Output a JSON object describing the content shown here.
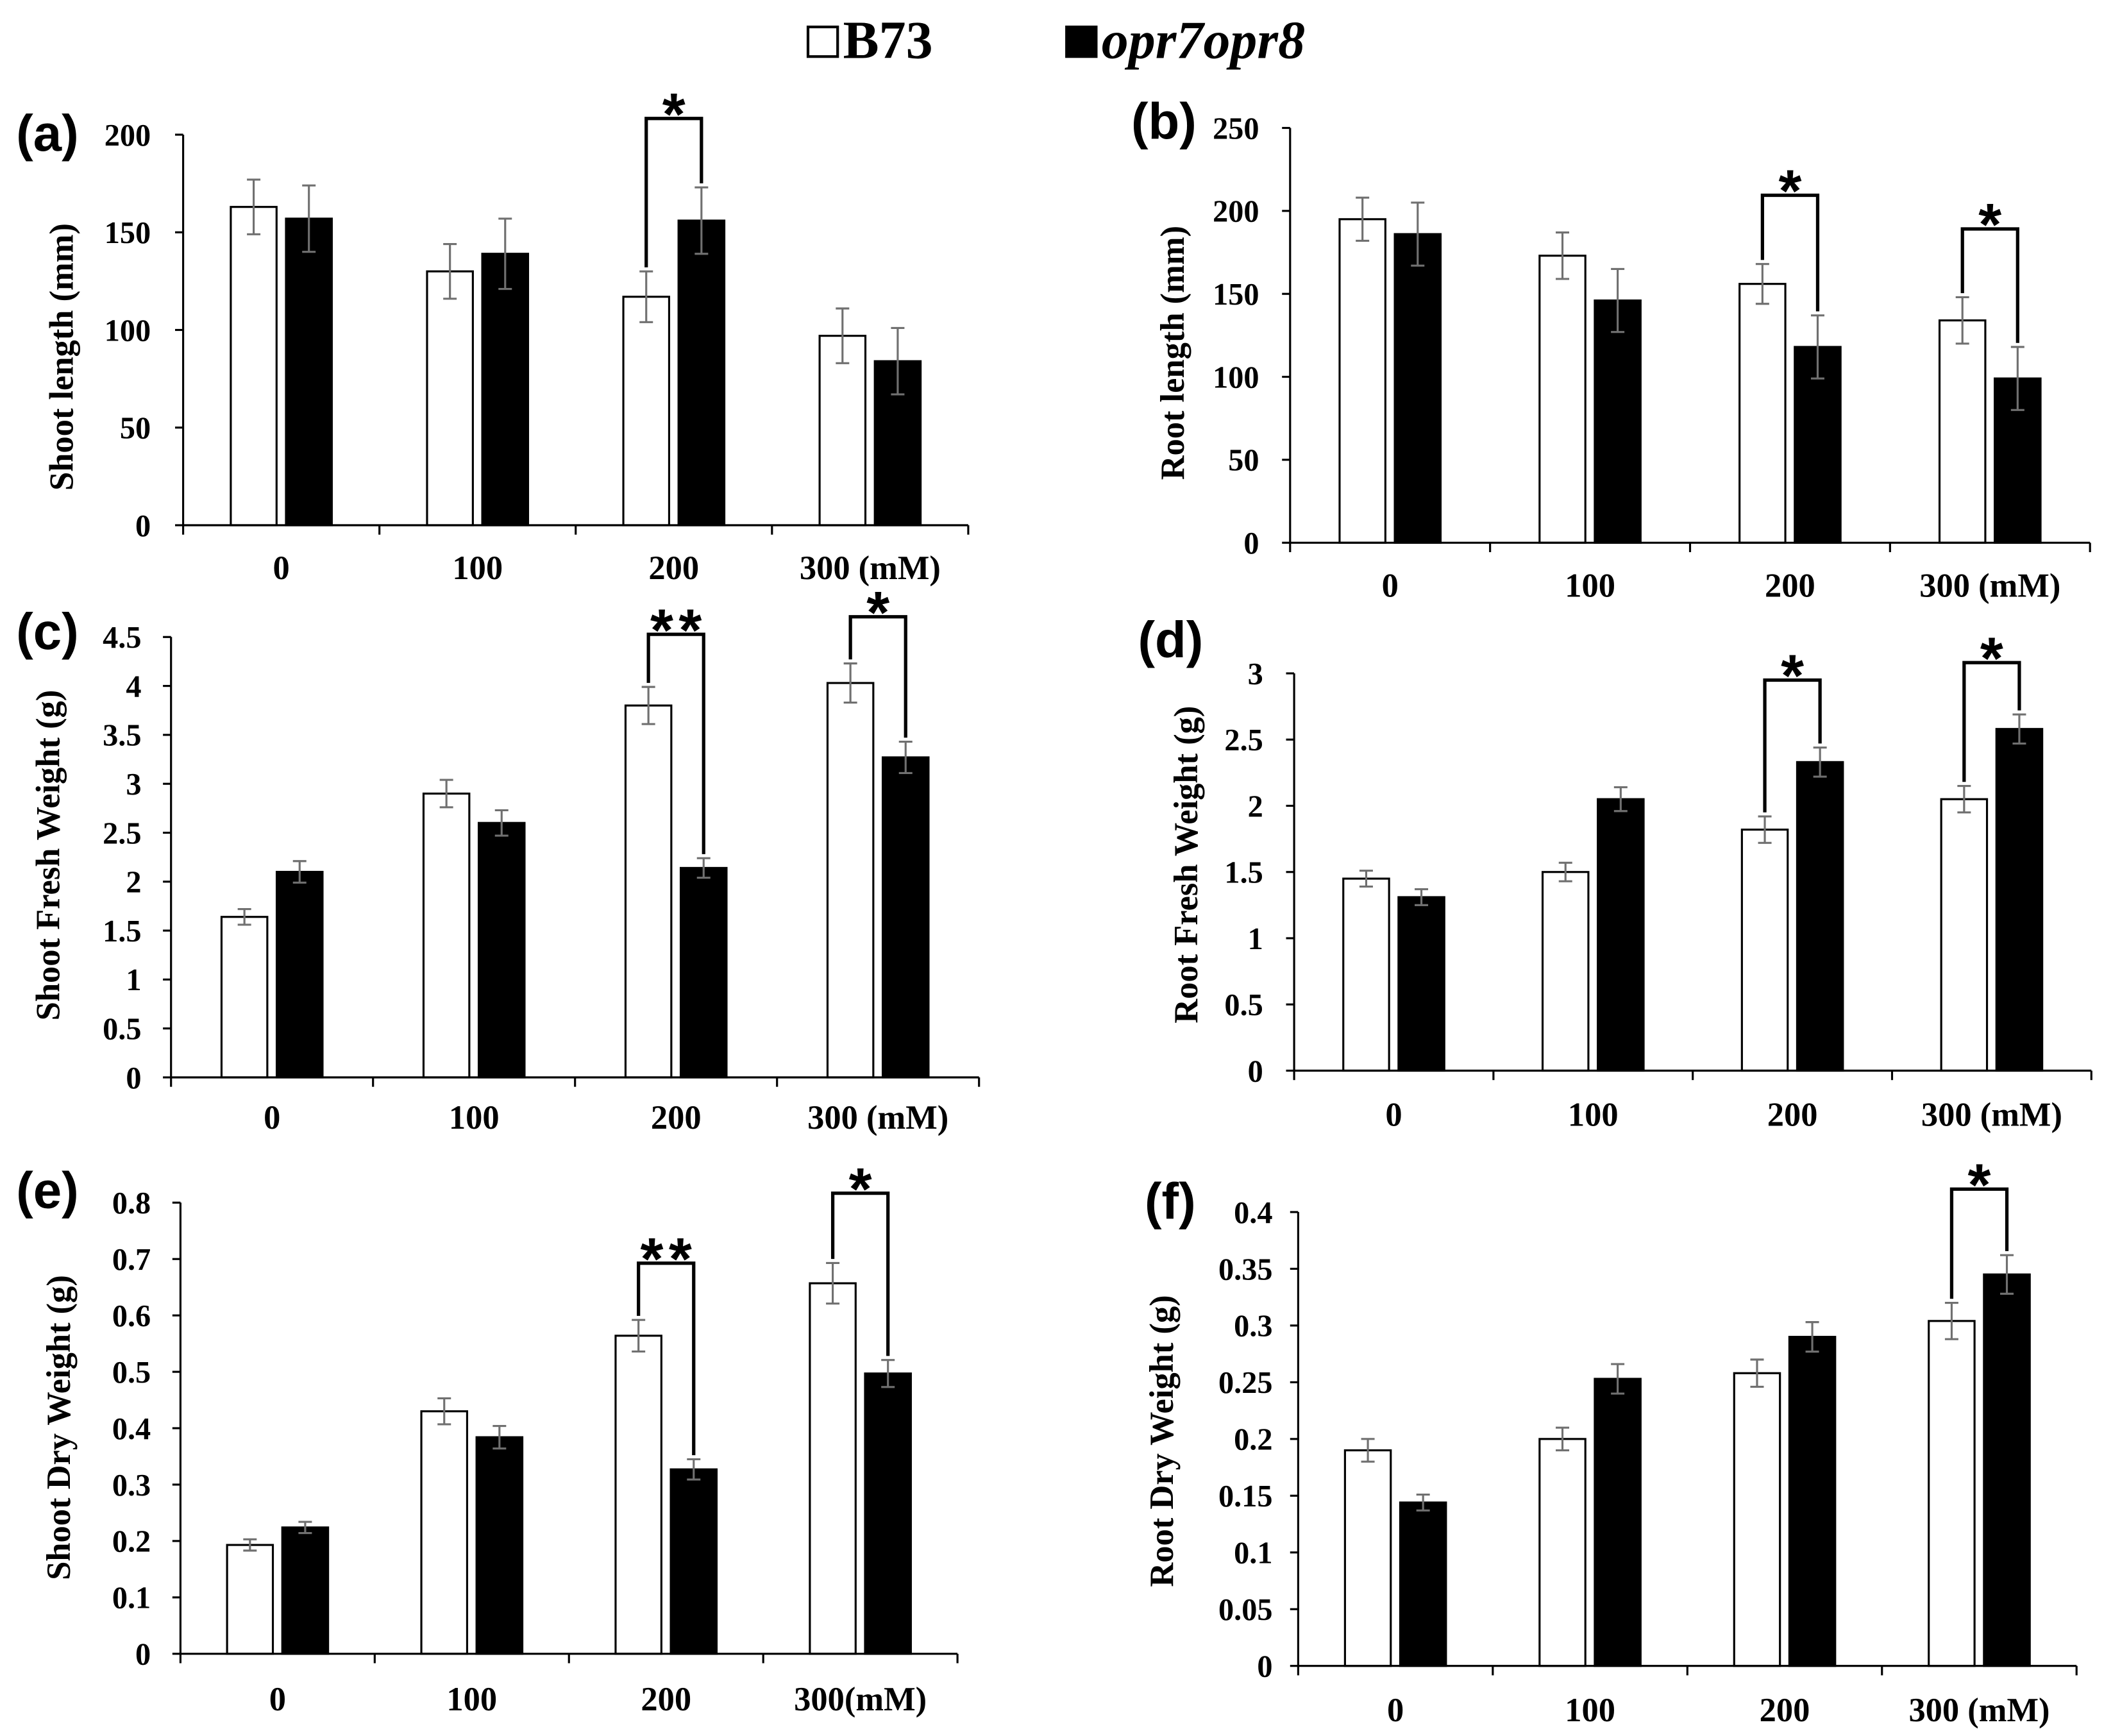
{
  "legend": {
    "items": [
      {
        "label": "B73",
        "swatch": "#ffffff"
      },
      {
        "label": "opr7opr8",
        "swatch": "#000000"
      }
    ]
  },
  "colors": {
    "axis": "#000000",
    "bar_edge": "#000000",
    "error_bar": "#707070",
    "bracket": "#000000"
  },
  "chart_data": [
    {
      "panel": "(a)",
      "type": "bar",
      "ylabel": "Shoot length (mm)",
      "categories": [
        "0",
        "100",
        "200",
        "300 (mM)"
      ],
      "ylim": [
        0,
        200
      ],
      "yticks": [
        0,
        50,
        100,
        150,
        200
      ],
      "series": [
        {
          "values": [
            163,
            130,
            117,
            97
          ],
          "errors": [
            14,
            14,
            13,
            14
          ]
        },
        {
          "values": [
            157,
            139,
            156,
            84
          ],
          "errors": [
            17,
            18,
            17,
            17
          ]
        }
      ],
      "significance": [
        {
          "category_index": 2,
          "label": "*"
        }
      ]
    },
    {
      "panel": "(b)",
      "type": "bar",
      "ylabel": "Root length (mm)",
      "categories": [
        "0",
        "100",
        "200",
        "300 (mM)"
      ],
      "ylim": [
        0,
        250
      ],
      "yticks": [
        0,
        50,
        100,
        150,
        200,
        250
      ],
      "series": [
        {
          "values": [
            195,
            173,
            156,
            134
          ],
          "errors": [
            13,
            14,
            12,
            14
          ]
        },
        {
          "values": [
            186,
            146,
            118,
            99
          ],
          "errors": [
            19,
            19,
            19,
            19
          ]
        }
      ],
      "significance": [
        {
          "category_index": 2,
          "label": "*"
        },
        {
          "category_index": 3,
          "label": "*"
        }
      ]
    },
    {
      "panel": "(c)",
      "type": "bar",
      "ylabel": "Shoot Fresh Weight (g)",
      "categories": [
        "0",
        "100",
        "200",
        "300 (mM)"
      ],
      "ylim": [
        0,
        4.5
      ],
      "yticks": [
        0,
        0.5,
        1,
        1.5,
        2,
        2.5,
        3,
        3.5,
        4,
        4.5
      ],
      "series": [
        {
          "values": [
            1.64,
            2.9,
            3.8,
            4.03
          ],
          "errors": [
            0.08,
            0.14,
            0.19,
            0.2
          ]
        },
        {
          "values": [
            2.1,
            2.6,
            2.14,
            3.27
          ],
          "errors": [
            0.11,
            0.13,
            0.1,
            0.16
          ]
        }
      ],
      "significance": [
        {
          "category_index": 2,
          "label": "**"
        },
        {
          "category_index": 3,
          "label": "*"
        }
      ]
    },
    {
      "panel": "(d)",
      "type": "bar",
      "ylabel": "Root Fresh Weight (g)",
      "categories": [
        "0",
        "100",
        "200",
        "300 (mM)"
      ],
      "ylim": [
        0,
        3
      ],
      "yticks": [
        0,
        0.5,
        1,
        1.5,
        2,
        2.5,
        3
      ],
      "series": [
        {
          "values": [
            1.45,
            1.5,
            1.82,
            2.05
          ],
          "errors": [
            0.06,
            0.07,
            0.1,
            0.1
          ]
        },
        {
          "values": [
            1.31,
            2.05,
            2.33,
            2.58
          ],
          "errors": [
            0.06,
            0.09,
            0.11,
            0.11
          ]
        }
      ],
      "significance": [
        {
          "category_index": 2,
          "label": "*"
        },
        {
          "category_index": 3,
          "label": "*"
        }
      ]
    },
    {
      "panel": "(e)",
      "type": "bar",
      "ylabel": "Shoot Dry Weight (g)",
      "categories": [
        "0",
        "100",
        "200",
        "300(mM)"
      ],
      "ylim": [
        0,
        0.8
      ],
      "yticks": [
        0,
        0.1,
        0.2,
        0.3,
        0.4,
        0.5,
        0.6,
        0.7,
        0.8
      ],
      "series": [
        {
          "values": [
            0.193,
            0.43,
            0.564,
            0.657
          ],
          "errors": [
            0.01,
            0.023,
            0.028,
            0.036
          ]
        },
        {
          "values": [
            0.224,
            0.384,
            0.327,
            0.497
          ],
          "errors": [
            0.01,
            0.02,
            0.018,
            0.024
          ]
        }
      ],
      "significance": [
        {
          "category_index": 2,
          "label": "**"
        },
        {
          "category_index": 3,
          "label": "*"
        }
      ]
    },
    {
      "panel": "(f)",
      "type": "bar",
      "ylabel": "Root Dry Weight (g)",
      "categories": [
        "0",
        "100",
        "200",
        "300 (mM)"
      ],
      "ylim": [
        0,
        0.4
      ],
      "yticks": [
        0,
        0.05,
        0.1,
        0.15,
        0.2,
        0.25,
        0.3,
        0.35,
        0.4
      ],
      "series": [
        {
          "values": [
            0.19,
            0.2,
            0.258,
            0.304
          ],
          "errors": [
            0.01,
            0.01,
            0.012,
            0.016
          ]
        },
        {
          "values": [
            0.144,
            0.253,
            0.29,
            0.345
          ],
          "errors": [
            0.007,
            0.013,
            0.013,
            0.017
          ]
        }
      ],
      "significance": [
        {
          "category_index": 3,
          "label": "*"
        }
      ]
    }
  ]
}
